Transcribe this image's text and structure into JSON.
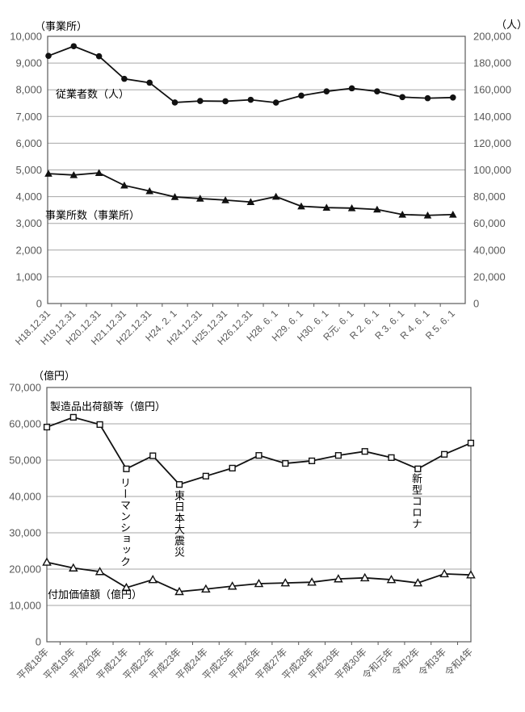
{
  "colors": {
    "series": "#111111",
    "grid": "#a6a6a6",
    "border": "#595959",
    "tick_text": "#595959",
    "label_text": "#000000",
    "background": "#ffffff"
  },
  "chart_data": [
    {
      "type": "line",
      "unit_label_left": "（事業所）",
      "unit_label_right": "（人）",
      "categories": [
        "H18.12.31",
        "H19.12.31",
        "H20.12.31",
        "H21.12.31",
        "H22.12.31",
        "H24. 2. 1",
        "H24.12.31",
        "H25.12.31",
        "H26.12.31",
        "H28. 6. 1",
        "H29. 6. 1",
        "H30. 6. 1",
        "R元. 6. 1",
        "R 2. 6. 1",
        "R 3. 6. 1",
        "R 4. 6. 1",
        "R 5. 6. 1"
      ],
      "y_left": {
        "min": 0,
        "max": 10000,
        "step": 1000
      },
      "y_right": {
        "min": 0,
        "max": 200000,
        "step": 20000
      },
      "grid": true,
      "legend_position": "inside-plot",
      "series": [
        {
          "name": "従業者数（人）",
          "axis": "right",
          "marker": "circle-filled",
          "values": [
            185400,
            192600,
            185100,
            168200,
            165300,
            150500,
            151600,
            151400,
            152500,
            150400,
            155600,
            158800,
            161100,
            158800,
            154500,
            153700,
            154200
          ]
        },
        {
          "name": "事業所数（事業所）",
          "axis": "left",
          "marker": "triangle-filled",
          "values": [
            4860,
            4810,
            4890,
            4420,
            4210,
            3990,
            3930,
            3870,
            3800,
            4000,
            3640,
            3590,
            3570,
            3520,
            3330,
            3300,
            3330
          ]
        }
      ]
    },
    {
      "type": "line",
      "unit_label_left": "（億円）",
      "categories": [
        "平成18年",
        "平成19年",
        "平成20年",
        "平成21年",
        "平成22年",
        "平成23年",
        "平成24年",
        "平成25年",
        "平成26年",
        "平成27年",
        "平成28年",
        "平成29年",
        "平成30年",
        "令和元年",
        "令和2年",
        "令和3年",
        "令和4年"
      ],
      "y_left": {
        "min": 0,
        "max": 70000,
        "step": 10000
      },
      "grid": true,
      "legend_position": "inside-plot",
      "series": [
        {
          "name": "製造品出荷額等（億円）",
          "axis": "left",
          "marker": "square-open",
          "values": [
            59100,
            61800,
            59800,
            47600,
            51200,
            43300,
            45600,
            47800,
            51300,
            49100,
            49800,
            51300,
            52400,
            50700,
            47600,
            51600,
            54700
          ]
        },
        {
          "name": "付加価値額（億円）",
          "axis": "left",
          "marker": "triangle-open",
          "values": [
            21900,
            20300,
            19300,
            14900,
            17100,
            13800,
            14500,
            15300,
            16000,
            16200,
            16400,
            17300,
            17600,
            17100,
            16200,
            18700,
            18400
          ]
        }
      ],
      "annotations": [
        {
          "text": "リーマンショック",
          "category": "平成21年"
        },
        {
          "text": "東日本大震災",
          "category": "平成23年"
        },
        {
          "text": "新型コロナ",
          "category": "令和2年"
        }
      ]
    }
  ]
}
